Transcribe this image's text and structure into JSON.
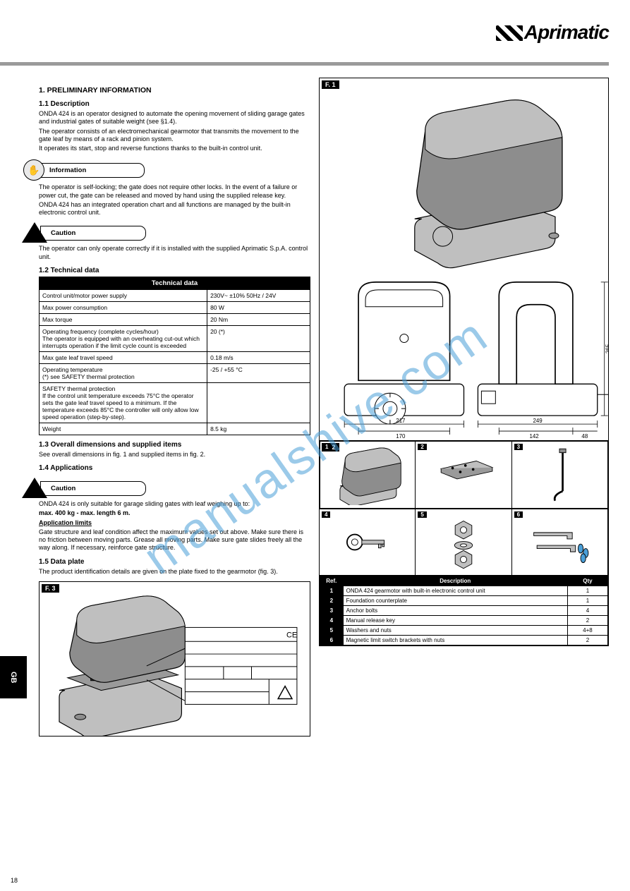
{
  "logo": {
    "name": "Aprimatic"
  },
  "header_rule_color": "#9a9a9a",
  "section1": {
    "number_title": "1.  PRELIMINARY INFORMATION",
    "sub1_1": "1.1  Description",
    "desc_p1": "ONDA 424 is an operator designed to automate the opening movement of sliding garage gates and industrial gates of suitable weight (see §1.4).",
    "desc_p2": "The operator consists of an electromechanical gearmotor that transmits the movement to the gate leaf by means of a rack and pinion system.",
    "desc_p3": "It operates its start, stop and reverse functions thanks to the built-in control unit.",
    "callout_info_label": "Information",
    "info_p1": "The operator is self-locking; the gate does not require other locks. In the event of a failure or power cut, the gate can be released and moved by hand using the supplied release key.",
    "info_p2": "ONDA 424 has an integrated operation chart and all functions are managed by the built-in electronic control unit.",
    "callout_caution_label": "Caution",
    "caution_p1": "The operator can only operate correctly if it is installed with the supplied Aprimatic S.p.A. control unit.",
    "sub1_2_table_title": "1.2  Technical data",
    "tech_header": "Technical data",
    "tech_rows": [
      [
        "Control unit/motor power supply",
        "230V~ ±10% 50Hz / 24V"
      ],
      [
        "Max power consumption",
        "80 W"
      ],
      [
        "Max torque",
        "20 Nm"
      ],
      [
        "Operating frequency (complete cycles/hour)\nThe operator is equipped with an overheating cut-out which interrupts operation if the limit cycle count is exceeded",
        "20 (*)"
      ],
      [
        "Max gate leaf travel speed",
        "0.18 m/s"
      ],
      [
        "Operating temperature\n(*) see SAFETY thermal protection",
        "-25 / +55 °C"
      ],
      [
        "SAFETY thermal protection\nIf the control unit temperature exceeds 75°C the operator sets the gate leaf travel speed to a minimum. If the temperature exceeds 85°C the controller will only allow low speed operation (step-by-step).",
        ""
      ],
      [
        "Weight",
        "8.5 kg"
      ]
    ],
    "sub1_3": "1.3  Overall dimensions and supplied items",
    "dims_text": "See overall dimensions in fig. 1 and supplied items in fig. 2.",
    "sub1_4": "1.4  Applications",
    "callout_caution2_label": "Caution",
    "app_p1": "ONDA 424 is only suitable for garage sliding gates with leaf weighing up to:",
    "app_max": "max. 400 kg - max. length 6 m.",
    "app_limits_title": "Application limits",
    "app_limits_body": "Gate structure and leaf condition affect the maximum values set out above. Make sure there is no friction between moving parts. Grease all moving parts. Make sure gate slides freely all the way along. If necessary, reinforce gate structure.",
    "sub1_5": "1.5  Data plate",
    "plate_text": "The product identification details are given on the plate fixed to the gearmotor (fig. 3)."
  },
  "fig1_label": "F. 1",
  "fig1_dims": {
    "front_width": "217",
    "front_inner": "170",
    "front_h": "265",
    "front_h2": "280",
    "side_width": "249",
    "side_inner": "142",
    "side_off": "48"
  },
  "fig2_label": "F. 2",
  "fig2_items": [
    "1",
    "2",
    "3",
    "4",
    "5",
    "6"
  ],
  "refs": {
    "header_ref": "Ref.",
    "header_desc": "Description",
    "header_qty": "Qty",
    "rows": [
      [
        "1",
        "ONDA 424 gearmotor with built-in electronic control unit",
        "1"
      ],
      [
        "2",
        "Foundation counterplate",
        "1"
      ],
      [
        "3",
        "Anchor bolts",
        "4"
      ],
      [
        "4",
        "Manual release key",
        "2"
      ],
      [
        "5",
        "Washers and nuts",
        "4+8"
      ],
      [
        "6",
        "Magnetic limit switch brackets with nuts",
        "2"
      ]
    ]
  },
  "fig3_label": "F. 3",
  "plate_rows": [
    "",
    "",
    "",
    "",
    ""
  ],
  "side_tab": "GB",
  "page_number": "18",
  "colors": {
    "watermark": "#4a9fd8",
    "fig_fill": "#bfbfbf",
    "fig_dark": "#8d8d8d",
    "line": "#000000"
  }
}
